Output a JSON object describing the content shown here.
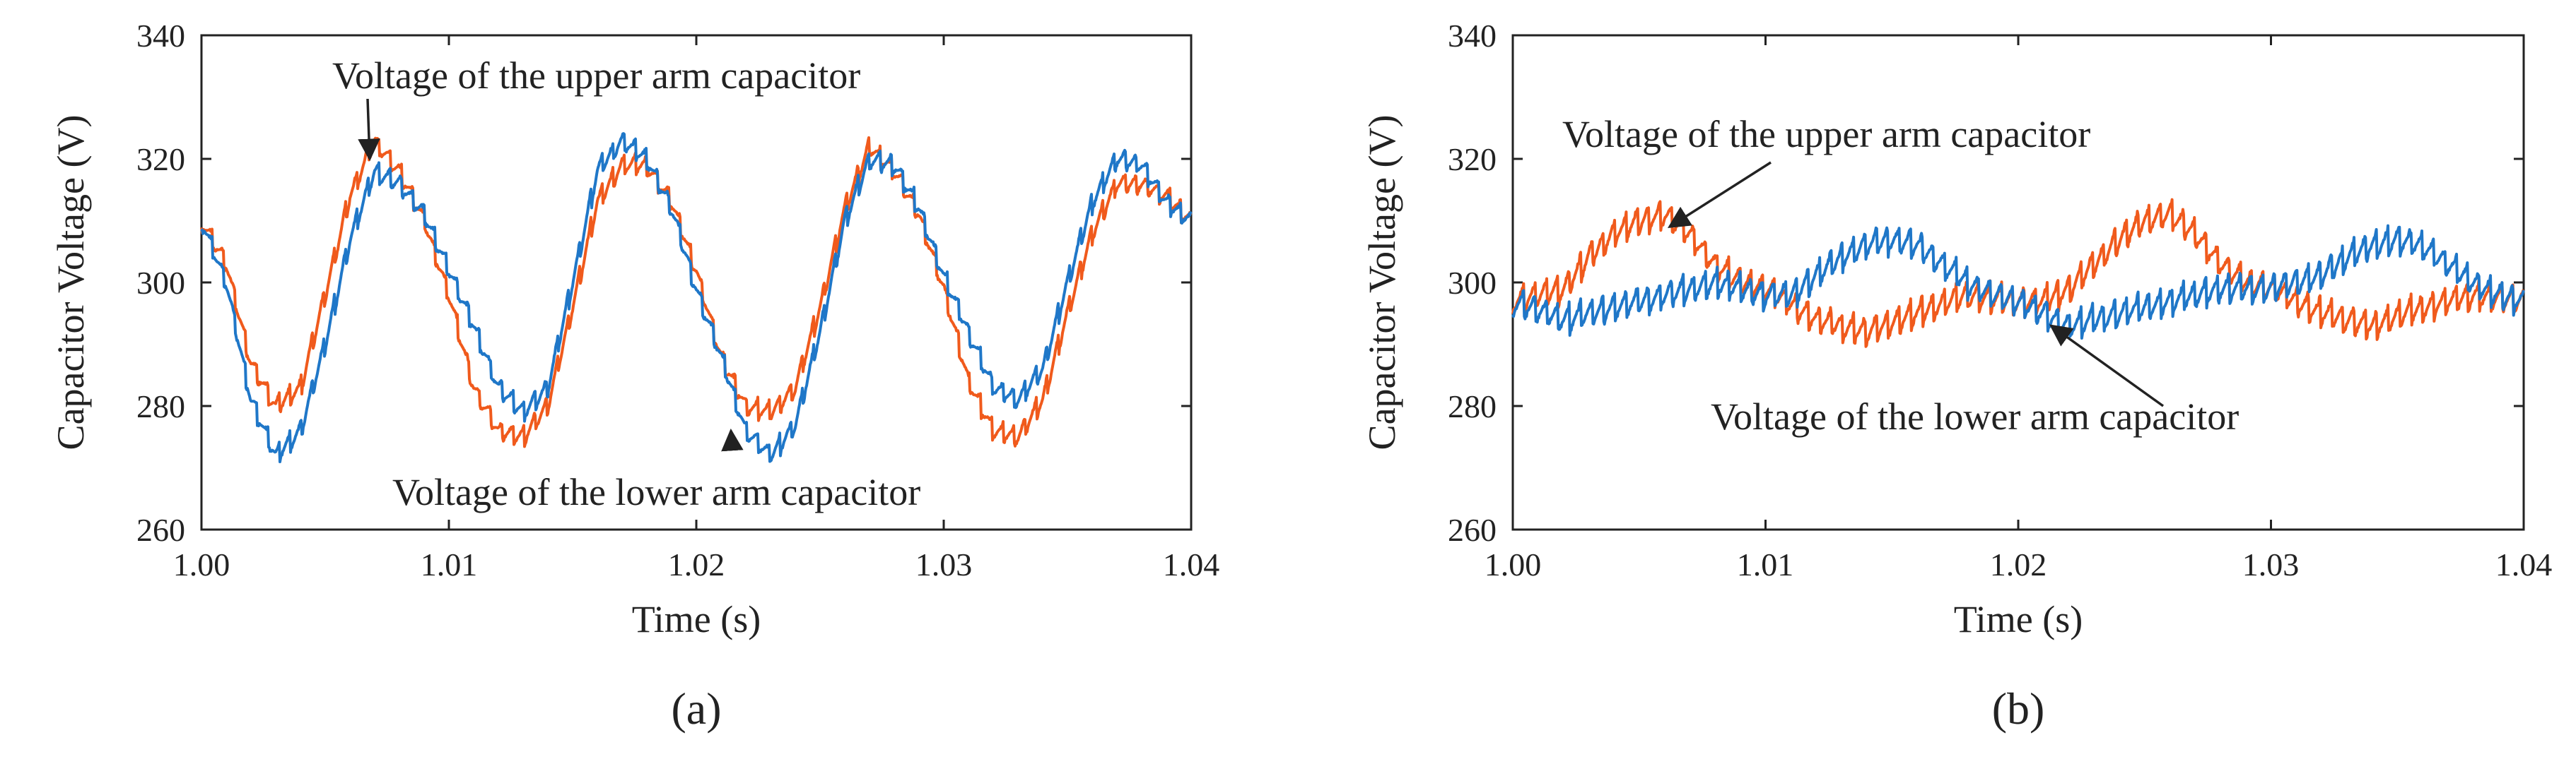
{
  "figure": {
    "panel_labels": [
      "(a)",
      "(b)"
    ]
  },
  "colors": {
    "upper": "#f05a1c",
    "lower": "#1f77c8",
    "axis": "#222222",
    "text": "#222222"
  },
  "chart_data": [
    {
      "panel": "(a)",
      "type": "line",
      "xlabel": "Time (s)",
      "ylabel": "Capacitor Voltage (V)",
      "xlim": [
        1.0,
        1.04
      ],
      "ylim": [
        260,
        340
      ],
      "xticks": [
        1.0,
        1.01,
        1.02,
        1.03,
        1.04
      ],
      "xtick_labels": [
        "1.00",
        "1.01",
        "1.02",
        "1.03",
        "1.04"
      ],
      "yticks": [
        260,
        280,
        300,
        320,
        340
      ],
      "yticks_labels": [
        "260",
        "280",
        "300",
        "320",
        "340"
      ],
      "grid": false,
      "series": [
        {
          "key": "upper",
          "x": [
            1.0,
            1.001,
            1.002,
            1.003,
            1.004,
            1.005,
            1.006,
            1.007,
            1.008,
            1.009,
            1.01,
            1.011,
            1.012,
            1.013,
            1.014,
            1.015,
            1.016,
            1.017,
            1.018,
            1.019,
            1.02,
            1.021,
            1.022,
            1.023,
            1.024,
            1.025,
            1.026,
            1.027,
            1.028,
            1.029,
            1.03,
            1.031,
            1.032,
            1.033,
            1.034,
            1.035,
            1.036,
            1.037,
            1.038,
            1.039,
            1.04
          ],
          "y": [
            310,
            303,
            287,
            280,
            283,
            298,
            314,
            323,
            318,
            310,
            298,
            283,
            276,
            275,
            280,
            296,
            313,
            319,
            319,
            313,
            302,
            288,
            280,
            279,
            283,
            296,
            312,
            322,
            318,
            311,
            299,
            284,
            276,
            275,
            281,
            295,
            308,
            316,
            316,
            314,
            310
          ]
        },
        {
          "key": "lower",
          "x": [
            1.0,
            1.001,
            1.002,
            1.003,
            1.004,
            1.005,
            1.006,
            1.007,
            1.008,
            1.009,
            1.01,
            1.011,
            1.012,
            1.013,
            1.014,
            1.015,
            1.016,
            1.017,
            1.018,
            1.019,
            1.02,
            1.021,
            1.022,
            1.023,
            1.024,
            1.025,
            1.026,
            1.027,
            1.028,
            1.029,
            1.03,
            1.031,
            1.032,
            1.033,
            1.034,
            1.035,
            1.036,
            1.037,
            1.038,
            1.039,
            1.04
          ],
          "y": [
            310,
            300,
            281,
            272,
            276,
            290,
            307,
            318,
            316,
            311,
            302,
            293,
            283,
            279,
            283,
            300,
            318,
            323,
            320,
            312,
            299,
            288,
            276,
            272,
            277,
            292,
            310,
            320,
            319,
            312,
            301,
            292,
            283,
            281,
            286,
            300,
            313,
            320,
            319,
            313,
            310
          ]
        }
      ],
      "annotations": [
        {
          "text": "Voltage of the upper arm capacitor",
          "target": [
            1.0068,
            320
          ]
        },
        {
          "text": "Voltage of the lower arm capacitor",
          "target": [
            1.0214,
            276
          ]
        }
      ]
    },
    {
      "panel": "(b)",
      "type": "line",
      "xlabel": "Time (s)",
      "ylabel": "Capacitor Voltage (V)",
      "xlim": [
        1.0,
        1.04
      ],
      "ylim": [
        260,
        340
      ],
      "xticks": [
        1.0,
        1.01,
        1.02,
        1.03,
        1.04
      ],
      "xtick_labels": [
        "1.00",
        "1.01",
        "1.02",
        "1.03",
        "1.04"
      ],
      "yticks": [
        260,
        280,
        300,
        320,
        340
      ],
      "yticks_labels": [
        "260",
        "280",
        "300",
        "320",
        "340"
      ],
      "grid": false,
      "series": [
        {
          "key": "upper",
          "x": [
            1.0,
            1.002,
            1.003,
            1.004,
            1.005,
            1.006,
            1.007,
            1.008,
            1.009,
            1.01,
            1.012,
            1.014,
            1.016,
            1.018,
            1.02,
            1.021,
            1.022,
            1.023,
            1.024,
            1.025,
            1.026,
            1.027,
            1.028,
            1.029,
            1.03,
            1.032,
            1.034,
            1.036,
            1.038,
            1.04
          ],
          "y": [
            297,
            299,
            304,
            308,
            310,
            311,
            308,
            303,
            300,
            299,
            294,
            292,
            295,
            298,
            297,
            297,
            299,
            303,
            307,
            310,
            311,
            308,
            303,
            300,
            299,
            295,
            293,
            296,
            298,
            297
          ]
        },
        {
          "key": "lower",
          "x": [
            1.0,
            1.002,
            1.004,
            1.006,
            1.008,
            1.01,
            1.011,
            1.012,
            1.013,
            1.014,
            1.015,
            1.016,
            1.017,
            1.018,
            1.019,
            1.02,
            1.022,
            1.024,
            1.026,
            1.028,
            1.03,
            1.031,
            1.032,
            1.033,
            1.034,
            1.035,
            1.036,
            1.037,
            1.038,
            1.039,
            1.04
          ],
          "y": [
            297,
            294,
            296,
            298,
            300,
            298,
            298,
            301,
            304,
            306,
            307,
            306,
            303,
            300,
            298,
            297,
            293,
            295,
            297,
            299,
            299,
            300,
            301,
            304,
            306,
            307,
            306,
            303,
            300,
            298,
            297
          ]
        }
      ],
      "annotations": [
        {
          "text": "Voltage of the upper arm capacitor",
          "target": [
            1.0062,
            309
          ]
        },
        {
          "text": "Voltage of the lower arm capacitor",
          "target": [
            1.0213,
            293
          ]
        }
      ]
    }
  ]
}
